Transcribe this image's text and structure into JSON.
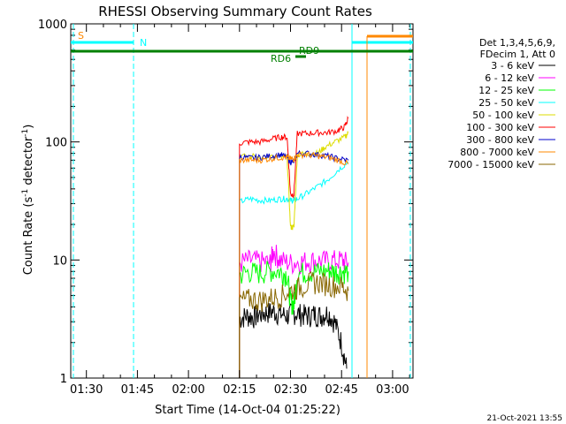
{
  "chart_data": {
    "type": "line",
    "title": "RHESSI Observing Summary Count Rates",
    "xlabel": "Start Time (14-Oct-04 01:25:22)",
    "ylabel_main": "Count Rate (s",
    "ylabel_sup1": "-1",
    "ylabel_mid": " detector",
    "ylabel_sup2": "-1",
    "ylabel_end": ")",
    "footer": "21-Oct-2021 13:55",
    "y_scale": "log",
    "ylim": [
      1,
      1000
    ],
    "xlim": [
      85.4,
      186
    ],
    "x_ticks": [
      {
        "value": 90,
        "label": "01:30"
      },
      {
        "value": 105,
        "label": "01:45"
      },
      {
        "value": 120,
        "label": "02:00"
      },
      {
        "value": 135,
        "label": "02:15"
      },
      {
        "value": 150,
        "label": "02:30"
      },
      {
        "value": 165,
        "label": "02:45"
      },
      {
        "value": 180,
        "label": "03:00"
      }
    ],
    "y_ticks": [
      {
        "value": 1,
        "label": "1"
      },
      {
        "value": 10,
        "label": "10"
      },
      {
        "value": 100,
        "label": "100"
      },
      {
        "value": 1000,
        "label": "1000"
      }
    ],
    "legend_header": [
      "Det 1,3,4,5,6,9,",
      "FDecim 1, Att 0"
    ],
    "series": [
      {
        "name": "3 - 6 keV",
        "color": "#000000",
        "x": [
          135,
          137,
          139,
          141,
          143,
          145,
          147,
          149,
          151,
          153,
          155,
          157,
          159,
          161,
          163,
          165,
          166.5
        ],
        "y": [
          3.2,
          3.4,
          3.3,
          3.5,
          3.6,
          3.7,
          3.5,
          3.4,
          3.6,
          3.5,
          3.4,
          3.5,
          3.4,
          3.6,
          3.0,
          2.0,
          1.2
        ]
      },
      {
        "name": "6 - 12 keV",
        "color": "#ff00ff",
        "x": [
          135,
          138,
          141,
          144,
          145,
          147,
          150,
          153,
          156,
          159,
          162,
          165,
          167
        ],
        "y": [
          9.5,
          10,
          9.8,
          9.5,
          12,
          10,
          9.5,
          9.7,
          10,
          9.8,
          10,
          10,
          9.5
        ]
      },
      {
        "name": "12 - 25 keV",
        "color": "#00ff00",
        "x": [
          135,
          138,
          141,
          144,
          147,
          149,
          150,
          151,
          152,
          155,
          158,
          161,
          163,
          165,
          167
        ],
        "y": [
          7.5,
          8,
          7.8,
          8.2,
          8,
          7.5,
          4.5,
          4.2,
          7.8,
          8,
          8,
          8.2,
          8,
          8,
          8
        ]
      },
      {
        "name": "25 - 50 keV",
        "color": "#00ffff",
        "x": [
          135,
          138,
          141,
          144,
          147,
          149,
          150,
          151,
          152,
          155,
          158,
          161,
          164,
          167
        ],
        "y": [
          31,
          33,
          32,
          32,
          33,
          33,
          32,
          32,
          33,
          37,
          42,
          48,
          58,
          68
        ]
      },
      {
        "name": "50 - 100 keV",
        "color": "#dddd00",
        "x": [
          135,
          140,
          145,
          149,
          150,
          151,
          152,
          155,
          158,
          160,
          163,
          166,
          167
        ],
        "y": [
          75,
          76,
          74,
          74,
          19,
          19,
          78,
          80,
          80,
          90,
          100,
          110,
          120
        ]
      },
      {
        "name": "100 - 300 keV",
        "color": "#ff0000",
        "x": [
          135,
          138,
          141,
          144,
          147,
          149,
          150,
          151,
          152,
          155,
          158,
          161,
          164,
          166,
          167
        ],
        "y": [
          98,
          100,
          100,
          105,
          110,
          110,
          36,
          36,
          118,
          118,
          120,
          120,
          125,
          135,
          160
        ]
      },
      {
        "name": "300 - 800 keV",
        "color": "#0000cc",
        "x": [
          135,
          138,
          141,
          144,
          147,
          149,
          150,
          151,
          152,
          155,
          158,
          161,
          164,
          167
        ],
        "y": [
          75,
          73,
          74,
          76,
          78,
          74,
          68,
          68,
          80,
          80,
          78,
          76,
          72,
          70
        ]
      },
      {
        "name": "800 - 7000 keV",
        "color": "#ff8800",
        "x": [
          135,
          138,
          141,
          144,
          147,
          149,
          150,
          151,
          152,
          155,
          158,
          161,
          164,
          167
        ],
        "y": [
          70,
          70,
          70,
          72,
          74,
          74,
          72,
          72,
          78,
          78,
          76,
          74,
          70,
          65
        ]
      },
      {
        "name": "7000 - 15000 keV",
        "color": "#886600",
        "x": [
          135,
          138,
          141,
          144,
          147,
          150,
          153,
          156,
          159,
          162,
          165,
          167
        ],
        "y": [
          4.5,
          4.7,
          4.6,
          4.8,
          5,
          5.5,
          6,
          6.5,
          6.5,
          6.2,
          6,
          5.5
        ]
      }
    ],
    "annotations": [
      {
        "label": "S",
        "color": "#ff8800"
      },
      {
        "label": "N",
        "color": "#00ffff"
      },
      {
        "label": "RD6",
        "color": "#008000"
      },
      {
        "label": "RD9",
        "color": "#008000"
      }
    ]
  }
}
